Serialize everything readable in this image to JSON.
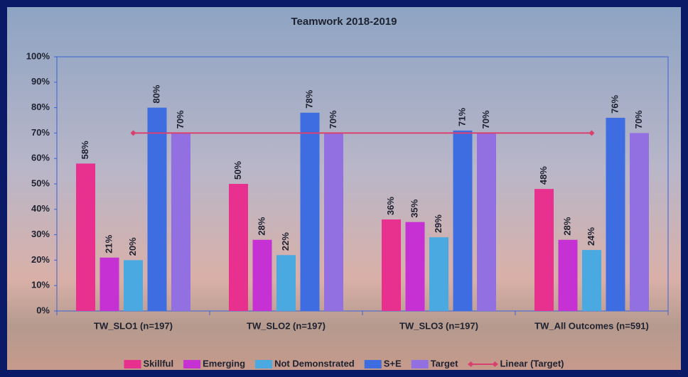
{
  "chart_data": {
    "type": "bar",
    "title": "Teamwork 2018-2019",
    "categories": [
      "TW_SLO1 (n=197)",
      "TW_SLO2 (n=197)",
      "TW_SLO3 (n=197)",
      "TW_All Outcomes (n=591)"
    ],
    "series": [
      {
        "name": "Skillful",
        "color": "#e8308f",
        "values": [
          58,
          50,
          36,
          48
        ],
        "value_labels": [
          "58%",
          "50%",
          "36%",
          "48%"
        ]
      },
      {
        "name": "Emerging",
        "color": "#c631d3",
        "values": [
          21,
          28,
          35,
          28
        ],
        "value_labels": [
          "21%",
          "28%",
          "35%",
          "28%"
        ]
      },
      {
        "name": "Not Demonstrated",
        "color": "#4ba9e2",
        "values": [
          20,
          22,
          29,
          24
        ],
        "value_labels": [
          "20%",
          "22%",
          "29%",
          "24%"
        ]
      },
      {
        "name": "S+E",
        "color": "#3e6de2",
        "values": [
          80,
          78,
          71,
          76
        ],
        "value_labels": [
          "80%",
          "78%",
          "71%",
          "76%"
        ]
      },
      {
        "name": "Target",
        "color": "#9370e2",
        "values": [
          70,
          70,
          70,
          70
        ],
        "value_labels": [
          "70%",
          "70%",
          "70%",
          "70%"
        ]
      },
      {
        "name": "Linear (Target)",
        "color": "#d9406e",
        "type": "line",
        "values": [
          70,
          70,
          70,
          70
        ]
      }
    ],
    "ylim": [
      0,
      100
    ],
    "yticks": [
      {
        "value": 0,
        "label": "0%"
      },
      {
        "value": 10,
        "label": "10%"
      },
      {
        "value": 20,
        "label": "20%"
      },
      {
        "value": 30,
        "label": "30%"
      },
      {
        "value": 40,
        "label": "40%"
      },
      {
        "value": 50,
        "label": "50%"
      },
      {
        "value": 60,
        "label": "60%"
      },
      {
        "value": 70,
        "label": "70%"
      },
      {
        "value": 80,
        "label": "80%"
      },
      {
        "value": 90,
        "label": "90%"
      },
      {
        "value": 100,
        "label": "100%"
      }
    ],
    "legend": "bottom"
  }
}
